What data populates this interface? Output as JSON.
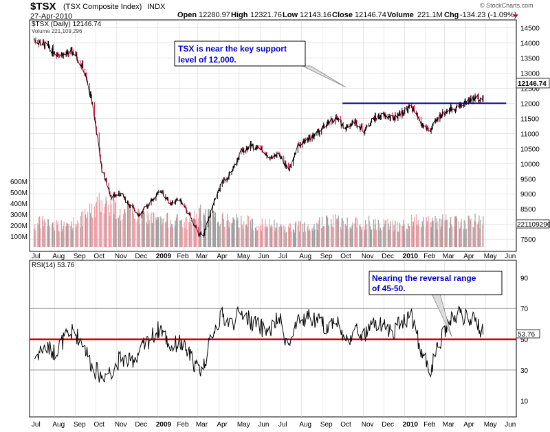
{
  "header": {
    "symbol": "$TSX",
    "name": "(TSX Composite Index)",
    "exchange": "INDX",
    "date": "27-Apr-2010",
    "open_label": "Open",
    "open": "12280.97",
    "high_label": "High",
    "high": "12321.76",
    "low_label": "Low",
    "low": "12143.16",
    "close_label": "Close",
    "close": "12146.74",
    "volume_label": "Volume",
    "volume": "221.1M",
    "chg_label": "Chg",
    "chg": "-134.23 (-1.09%)",
    "watermark": "© StockCharts.com"
  },
  "colors": {
    "up": "#000000",
    "down": "#cc0033",
    "vol_up": "#a0a0a0",
    "vol_down": "#f0a0a8",
    "support": "#000099",
    "rsi_mid": "#cc0000",
    "grid": "#cccccc"
  },
  "chart_data": [
    {
      "type": "line",
      "title": "$TSX (Daily) 12146.74",
      "legend_volume": "Volume 221,109,296",
      "last_price_label": "12146.74",
      "last_volume_label": "221109296",
      "x": [
        "2008-07-02",
        "2008-07-16",
        "2008-08-01",
        "2008-08-15",
        "2008-08-29",
        "2008-09-12",
        "2008-09-26",
        "2008-10-10",
        "2008-10-24",
        "2008-11-07",
        "2008-11-21",
        "2008-12-05",
        "2008-12-19",
        "2009-01-05",
        "2009-01-19",
        "2009-02-02",
        "2009-02-16",
        "2009-03-02",
        "2009-03-09",
        "2009-03-23",
        "2009-04-06",
        "2009-04-20",
        "2009-05-04",
        "2009-05-18",
        "2009-06-01",
        "2009-06-15",
        "2009-06-29",
        "2009-07-13",
        "2009-07-27",
        "2009-08-10",
        "2009-08-24",
        "2009-09-08",
        "2009-09-21",
        "2009-10-05",
        "2009-10-19",
        "2009-11-02",
        "2009-11-16",
        "2009-11-30",
        "2009-12-14",
        "2009-12-28",
        "2010-01-11",
        "2010-01-25",
        "2010-02-08",
        "2010-02-22",
        "2010-03-08",
        "2010-03-22",
        "2010-04-05",
        "2010-04-19",
        "2010-04-27"
      ],
      "series": [
        {
          "name": "$TSX (Daily)",
          "values": [
            14100,
            13950,
            13700,
            13600,
            13700,
            13200,
            12000,
            9800,
            8900,
            9000,
            8600,
            8300,
            8700,
            9100,
            8700,
            8800,
            8300,
            7700,
            7600,
            8600,
            9400,
            9700,
            10400,
            10600,
            10500,
            10200,
            10300,
            9800,
            10600,
            10800,
            11000,
            11300,
            11500,
            11200,
            11400,
            11100,
            11500,
            11600,
            11500,
            11700,
            11900,
            11300,
            11100,
            11600,
            11800,
            11900,
            12100,
            12200,
            12147
          ]
        },
        {
          "name": "Volume",
          "values": [
            200,
            230,
            210,
            190,
            220,
            260,
            340,
            420,
            380,
            300,
            330,
            270,
            280,
            230,
            250,
            240,
            220,
            310,
            300,
            270,
            250,
            230,
            240,
            220,
            210,
            200,
            190,
            180,
            190,
            200,
            220,
            230,
            240,
            220,
            230,
            220,
            230,
            210,
            200,
            190,
            230,
            250,
            240,
            230,
            240,
            220,
            230,
            240,
            221
          ]
        }
      ],
      "support_line": {
        "value": 12000,
        "from": "2009-10-01",
        "to": "2010-05-31"
      },
      "ylim": [
        7300,
        14600
      ],
      "yticks": [
        7500,
        8000,
        8500,
        9000,
        9500,
        10000,
        10500,
        11000,
        11500,
        12000,
        12500,
        13000,
        13500,
        14000,
        14500
      ],
      "volume_ticks": [
        "100M",
        "200M",
        "300M",
        "400M",
        "500M",
        "600M"
      ],
      "volume_tick_values": [
        100,
        200,
        300,
        400,
        500,
        600
      ],
      "annotation": {
        "text_line1": "TSX is near the key support",
        "text_line2": "level of 12,000."
      }
    },
    {
      "type": "line",
      "title": "RSI(14) 53.76",
      "last_value_label": "53.76",
      "x": [
        "2008-07-02",
        "2008-07-16",
        "2008-08-01",
        "2008-08-15",
        "2008-08-29",
        "2008-09-12",
        "2008-09-26",
        "2008-10-10",
        "2008-10-24",
        "2008-11-07",
        "2008-11-21",
        "2008-12-05",
        "2008-12-19",
        "2009-01-05",
        "2009-01-19",
        "2009-02-02",
        "2009-02-16",
        "2009-03-02",
        "2009-03-09",
        "2009-03-23",
        "2009-04-06",
        "2009-04-20",
        "2009-05-04",
        "2009-05-18",
        "2009-06-01",
        "2009-06-15",
        "2009-06-29",
        "2009-07-13",
        "2009-07-27",
        "2009-08-10",
        "2009-08-24",
        "2009-09-08",
        "2009-09-21",
        "2009-10-05",
        "2009-10-19",
        "2009-11-02",
        "2009-11-16",
        "2009-11-30",
        "2009-12-14",
        "2009-12-28",
        "2010-01-11",
        "2010-01-25",
        "2010-02-08",
        "2010-02-22",
        "2010-03-08",
        "2010-03-22",
        "2010-04-05",
        "2010-04-19",
        "2010-04-27"
      ],
      "series": [
        {
          "name": "RSI(14)",
          "values": [
            38,
            45,
            42,
            50,
            55,
            48,
            32,
            26,
            30,
            38,
            35,
            42,
            50,
            58,
            45,
            48,
            40,
            30,
            32,
            55,
            65,
            60,
            68,
            62,
            58,
            55,
            64,
            45,
            60,
            65,
            62,
            58,
            64,
            48,
            56,
            52,
            60,
            58,
            55,
            62,
            66,
            42,
            30,
            48,
            62,
            66,
            64,
            60,
            53.76
          ]
        }
      ],
      "ylim": [
        0,
        100
      ],
      "yticks": [
        10,
        30,
        50,
        70,
        90
      ],
      "midline": 50,
      "annotation": {
        "text_line1": "Nearing the reversal range",
        "text_line2": "of 45-50."
      }
    }
  ],
  "x_axis": {
    "labels": [
      {
        "text": "Jul",
        "date": "2008-07-01"
      },
      {
        "text": "Aug",
        "date": "2008-08-01"
      },
      {
        "text": "Sep",
        "date": "2008-09-01"
      },
      {
        "text": "Oct",
        "date": "2008-10-01"
      },
      {
        "text": "Nov",
        "date": "2008-11-01"
      },
      {
        "text": "Dec",
        "date": "2008-12-01"
      },
      {
        "text": "2009",
        "date": "2009-01-01",
        "bold": true
      },
      {
        "text": "Feb",
        "date": "2009-02-01"
      },
      {
        "text": "Mar",
        "date": "2009-03-01"
      },
      {
        "text": "Apr",
        "date": "2009-04-01"
      },
      {
        "text": "May",
        "date": "2009-05-01"
      },
      {
        "text": "Jun",
        "date": "2009-06-01"
      },
      {
        "text": "Jul",
        "date": "2009-07-01"
      },
      {
        "text": "Aug",
        "date": "2009-08-01"
      },
      {
        "text": "Sep",
        "date": "2009-09-01"
      },
      {
        "text": "Oct",
        "date": "2009-10-01"
      },
      {
        "text": "Nov",
        "date": "2009-11-01"
      },
      {
        "text": "Dec",
        "date": "2009-12-01"
      },
      {
        "text": "2010",
        "date": "2010-01-01",
        "bold": true
      },
      {
        "text": "Feb",
        "date": "2010-02-01"
      },
      {
        "text": "Mar",
        "date": "2010-03-01"
      },
      {
        "text": "Apr",
        "date": "2010-04-01"
      },
      {
        "text": "May",
        "date": "2010-05-01"
      },
      {
        "text": "Jun",
        "date": "2010-06-01"
      }
    ],
    "start": "2008-06-25",
    "end": "2010-06-15"
  }
}
